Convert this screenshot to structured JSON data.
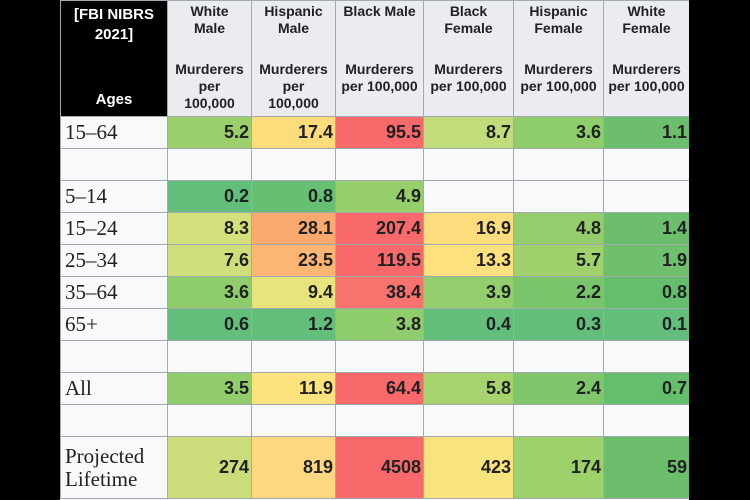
{
  "table": {
    "corner": {
      "line1": "[FBI NIBRS",
      "line2": "2021]",
      "line3": "Ages"
    },
    "columns": [
      {
        "name_l1": "White",
        "name_l2": "Male",
        "sub_l1": "Murderers",
        "sub_l2": "per",
        "sub_l3": "100,000"
      },
      {
        "name_l1": "Hispanic",
        "name_l2": "Male",
        "sub_l1": "Murderers",
        "sub_l2": "per",
        "sub_l3": "100,000"
      },
      {
        "name_l1": "Black Male",
        "name_l2": "",
        "sub_l1": "Murderers",
        "sub_l2": "per 100,000",
        "sub_l3": ""
      },
      {
        "name_l1": "Black",
        "name_l2": "Female",
        "sub_l1": "Murderers",
        "sub_l2": "per 100,000",
        "sub_l3": ""
      },
      {
        "name_l1": "Hispanic",
        "name_l2": "Female",
        "sub_l1": "Murderers",
        "sub_l2": "per 100,000",
        "sub_l3": ""
      },
      {
        "name_l1": "White",
        "name_l2": "Female",
        "sub_l1": "Murderers",
        "sub_l2": "per 100,000",
        "sub_l3": ""
      }
    ],
    "rows": [
      {
        "label": "15–64",
        "values": [
          "5.2",
          "17.4",
          "95.5",
          "8.7",
          "3.6",
          "1.1"
        ],
        "colors": [
          "#9bcf6c",
          "#fddc7c",
          "#f8696b",
          "#c3dc7b",
          "#8fcc6c",
          "#6cbe6c"
        ]
      },
      {
        "label": "",
        "blank": true
      },
      {
        "label": "5–14",
        "values": [
          "0.2",
          "0.8",
          "4.9",
          "",
          "",
          ""
        ],
        "colors": [
          "#63be7b",
          "#67bf73",
          "#96ce6b",
          "",
          "",
          ""
        ]
      },
      {
        "label": "15–24",
        "values": [
          "8.3",
          "28.1",
          "207.4",
          "16.9",
          "4.8",
          "1.4"
        ],
        "colors": [
          "#d4e07c",
          "#fbaa6f",
          "#f8696b",
          "#fedd7f",
          "#94cd6b",
          "#6cbe6c"
        ]
      },
      {
        "label": "25–34",
        "values": [
          "7.6",
          "23.5",
          "119.5",
          "13.3",
          "5.7",
          "1.9"
        ],
        "colors": [
          "#cfde7b",
          "#fcb573",
          "#f8696b",
          "#fee07f",
          "#9fd16c",
          "#70bf6c"
        ]
      },
      {
        "label": "35–64",
        "values": [
          "3.6",
          "9.4",
          "38.4",
          "3.9",
          "2.2",
          "0.8"
        ],
        "colors": [
          "#8fcc6c",
          "#e7e47e",
          "#f8726e",
          "#93cd6c",
          "#7ac46c",
          "#65be6c"
        ]
      },
      {
        "label": "65+",
        "values": [
          "0.6",
          "1.2",
          "3.8",
          "0.4",
          "0.3",
          "0.1"
        ],
        "colors": [
          "#63be7b",
          "#63be7b",
          "#8fcc6c",
          "#63be7b",
          "#63be7b",
          "#63be7b"
        ]
      },
      {
        "label": "",
        "blank": true
      },
      {
        "label": "All",
        "values": [
          "3.5",
          "11.9",
          "64.4",
          "5.8",
          "2.4",
          "0.7"
        ],
        "colors": [
          "#91cd6c",
          "#fde27e",
          "#f8696b",
          "#a7d36e",
          "#7fc66c",
          "#65be6c"
        ]
      },
      {
        "label": "",
        "blank": true
      },
      {
        "label_l1": "Projected",
        "label_l2": "Lifetime",
        "values": [
          "274",
          "819",
          "4508",
          "423",
          "174",
          "59"
        ],
        "colors": [
          "#cbdd7a",
          "#fed880",
          "#f8696b",
          "#f8e47e",
          "#9ed06c",
          "#6cbe6c"
        ]
      }
    ]
  }
}
